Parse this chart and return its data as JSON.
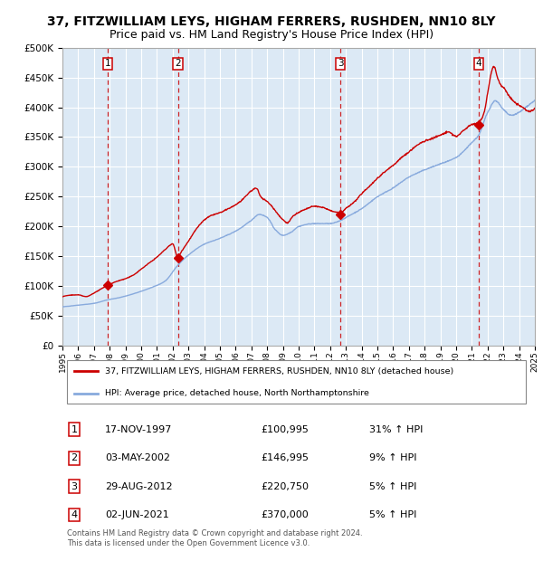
{
  "title": "37, FITZWILLIAM LEYS, HIGHAM FERRERS, RUSHDEN, NN10 8LY",
  "subtitle": "Price paid vs. HM Land Registry's House Price Index (HPI)",
  "title_fontsize": 10,
  "subtitle_fontsize": 9,
  "plot_bg_color": "#dce9f5",
  "x_start_year": 1995,
  "x_end_year": 2025,
  "ylim": [
    0,
    500000
  ],
  "yticks": [
    0,
    50000,
    100000,
    150000,
    200000,
    250000,
    300000,
    350000,
    400000,
    450000,
    500000
  ],
  "red_line_color": "#cc0000",
  "blue_line_color": "#88aadd",
  "marker_color": "#cc0000",
  "dashed_line_color": "#cc0000",
  "legend_label_red": "37, FITZWILLIAM LEYS, HIGHAM FERRERS, RUSHDEN, NN10 8LY (detached house)",
  "legend_label_blue": "HPI: Average price, detached house, North Northamptonshire",
  "sale_points": [
    {
      "num": 1,
      "year": 1997.88,
      "price": 100995,
      "date": "17-NOV-1997",
      "price_str": "£100,995",
      "hpi_str": "31% ↑ HPI"
    },
    {
      "num": 2,
      "year": 2002.33,
      "price": 146995,
      "date": "03-MAY-2002",
      "price_str": "£146,995",
      "hpi_str": "9% ↑ HPI"
    },
    {
      "num": 3,
      "year": 2012.66,
      "price": 220750,
      "date": "29-AUG-2012",
      "price_str": "£220,750",
      "hpi_str": "5% ↑ HPI"
    },
    {
      "num": 4,
      "year": 2021.42,
      "price": 370000,
      "date": "02-JUN-2021",
      "price_str": "£370,000",
      "hpi_str": "5% ↑ HPI"
    }
  ],
  "footer_text": "Contains HM Land Registry data © Crown copyright and database right 2024.\nThis data is licensed under the Open Government Licence v3.0.",
  "xtick_years": [
    1995,
    1996,
    1997,
    1998,
    1999,
    2000,
    2001,
    2002,
    2003,
    2004,
    2005,
    2006,
    2007,
    2008,
    2009,
    2010,
    2011,
    2012,
    2013,
    2014,
    2015,
    2016,
    2017,
    2018,
    2019,
    2020,
    2021,
    2022,
    2023,
    2024,
    2025
  ],
  "hpi_keypoints": [
    [
      1995.0,
      65000
    ],
    [
      1996.0,
      68000
    ],
    [
      1997.0,
      71000
    ],
    [
      1997.88,
      77000
    ],
    [
      1998.5,
      80000
    ],
    [
      1999.5,
      87000
    ],
    [
      2000.5,
      96000
    ],
    [
      2001.5,
      108000
    ],
    [
      2002.33,
      135000
    ],
    [
      2003.0,
      152000
    ],
    [
      2004.0,
      170000
    ],
    [
      2005.0,
      180000
    ],
    [
      2006.0,
      192000
    ],
    [
      2007.0,
      210000
    ],
    [
      2007.5,
      220000
    ],
    [
      2008.0,
      215000
    ],
    [
      2008.5,
      195000
    ],
    [
      2009.0,
      185000
    ],
    [
      2009.5,
      190000
    ],
    [
      2010.0,
      200000
    ],
    [
      2011.0,
      205000
    ],
    [
      2012.0,
      205000
    ],
    [
      2012.66,
      210000
    ],
    [
      2013.0,
      215000
    ],
    [
      2014.0,
      230000
    ],
    [
      2015.0,
      250000
    ],
    [
      2016.0,
      265000
    ],
    [
      2017.0,
      283000
    ],
    [
      2018.0,
      295000
    ],
    [
      2019.0,
      305000
    ],
    [
      2020.0,
      315000
    ],
    [
      2021.0,
      340000
    ],
    [
      2021.42,
      352000
    ],
    [
      2022.0,
      390000
    ],
    [
      2022.5,
      410000
    ],
    [
      2023.0,
      395000
    ],
    [
      2023.5,
      385000
    ],
    [
      2024.0,
      390000
    ],
    [
      2024.5,
      400000
    ],
    [
      2025.0,
      410000
    ]
  ],
  "red_keypoints": [
    [
      1995.0,
      82000
    ],
    [
      1996.0,
      85000
    ],
    [
      1996.5,
      82000
    ],
    [
      1997.0,
      88000
    ],
    [
      1997.88,
      100995
    ],
    [
      1998.5,
      108000
    ],
    [
      1999.0,
      112000
    ],
    [
      1999.5,
      118000
    ],
    [
      2000.0,
      128000
    ],
    [
      2000.5,
      138000
    ],
    [
      2001.0,
      148000
    ],
    [
      2001.5,
      160000
    ],
    [
      2002.0,
      170000
    ],
    [
      2002.33,
      146995
    ],
    [
      2002.5,
      155000
    ],
    [
      2003.0,
      175000
    ],
    [
      2003.5,
      195000
    ],
    [
      2004.0,
      210000
    ],
    [
      2004.5,
      218000
    ],
    [
      2005.0,
      222000
    ],
    [
      2005.5,
      228000
    ],
    [
      2006.0,
      235000
    ],
    [
      2006.5,
      245000
    ],
    [
      2007.0,
      258000
    ],
    [
      2007.3,
      262000
    ],
    [
      2007.6,
      248000
    ],
    [
      2008.0,
      240000
    ],
    [
      2008.3,
      232000
    ],
    [
      2008.6,
      222000
    ],
    [
      2009.0,
      210000
    ],
    [
      2009.3,
      205000
    ],
    [
      2009.6,
      215000
    ],
    [
      2010.0,
      222000
    ],
    [
      2010.5,
      228000
    ],
    [
      2011.0,
      232000
    ],
    [
      2011.5,
      230000
    ],
    [
      2012.0,
      225000
    ],
    [
      2012.33,
      222000
    ],
    [
      2012.66,
      220750
    ],
    [
      2013.0,
      228000
    ],
    [
      2013.5,
      238000
    ],
    [
      2014.0,
      252000
    ],
    [
      2014.5,
      265000
    ],
    [
      2015.0,
      278000
    ],
    [
      2015.5,
      290000
    ],
    [
      2016.0,
      300000
    ],
    [
      2016.5,
      312000
    ],
    [
      2017.0,
      322000
    ],
    [
      2017.5,
      333000
    ],
    [
      2018.0,
      340000
    ],
    [
      2018.5,
      345000
    ],
    [
      2019.0,
      350000
    ],
    [
      2019.5,
      355000
    ],
    [
      2020.0,
      348000
    ],
    [
      2020.5,
      358000
    ],
    [
      2021.0,
      368000
    ],
    [
      2021.42,
      370000
    ],
    [
      2021.8,
      390000
    ],
    [
      2022.0,
      420000
    ],
    [
      2022.2,
      450000
    ],
    [
      2022.4,
      465000
    ],
    [
      2022.6,
      448000
    ],
    [
      2022.8,
      435000
    ],
    [
      2023.0,
      430000
    ],
    [
      2023.3,
      418000
    ],
    [
      2023.6,
      408000
    ],
    [
      2024.0,
      400000
    ],
    [
      2024.3,
      395000
    ],
    [
      2024.6,
      390000
    ],
    [
      2025.0,
      395000
    ]
  ]
}
